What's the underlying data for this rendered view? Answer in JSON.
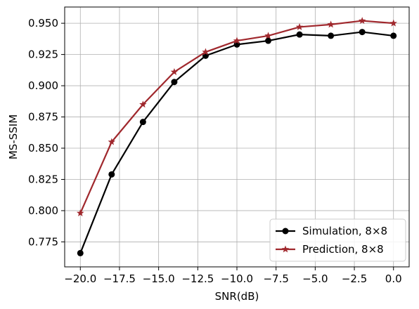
{
  "chart_data": {
    "type": "line",
    "title": "",
    "xlabel": "SNR(dB)",
    "ylabel": "MS-SSIM",
    "xlim": [
      -21.0,
      1.0
    ],
    "ylim": [
      0.755,
      0.963
    ],
    "grid": true,
    "legend_position": "bottom-right",
    "x": [
      -20,
      -18,
      -16,
      -14,
      -12,
      -10,
      -8,
      -6,
      -4,
      -2,
      0
    ],
    "x_ticks": [
      -20.0,
      -17.5,
      -15.0,
      -12.5,
      -10.0,
      -7.5,
      -5.0,
      -2.5,
      0.0
    ],
    "x_tick_labels": [
      "−20.0",
      "−17.5",
      "−15.0",
      "−12.5",
      "−10.0",
      "−7.5",
      "−5.0",
      "−2.5",
      "0.0"
    ],
    "y_ticks": [
      0.775,
      0.8,
      0.825,
      0.85,
      0.875,
      0.9,
      0.925,
      0.95
    ],
    "y_tick_labels": [
      "0.775",
      "0.800",
      "0.825",
      "0.850",
      "0.875",
      "0.900",
      "0.925",
      "0.950"
    ],
    "series": [
      {
        "name": "Simulation, 8×8",
        "color": "#000000",
        "marker": "circle",
        "values": [
          0.766,
          0.829,
          0.871,
          0.903,
          0.924,
          0.933,
          0.936,
          0.941,
          0.94,
          0.943,
          0.94
        ]
      },
      {
        "name": "Prediction, 8×8",
        "color": "#a0282d",
        "marker": "star",
        "values": [
          0.798,
          0.855,
          0.885,
          0.911,
          0.927,
          0.936,
          0.94,
          0.947,
          0.949,
          0.952,
          0.95
        ]
      }
    ]
  }
}
